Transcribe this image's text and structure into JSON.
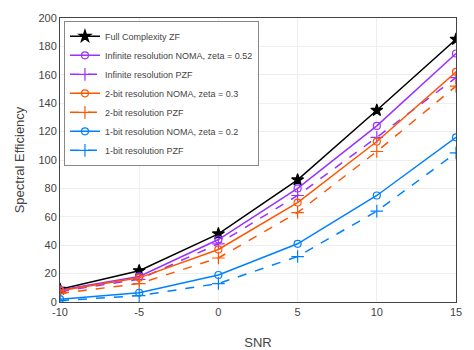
{
  "chart_data": {
    "type": "line",
    "xlabel": "SNR",
    "ylabel": "Spectral Efficiency",
    "x": [
      -10,
      -5,
      0,
      5,
      10,
      15
    ],
    "xlim": [
      -10,
      15
    ],
    "ylim": [
      0,
      200
    ],
    "xticks": [
      -10,
      -5,
      0,
      5,
      10,
      15
    ],
    "yticks": [
      0,
      20,
      40,
      60,
      80,
      100,
      120,
      140,
      160,
      180,
      200
    ],
    "grid": true,
    "legend": "upper left",
    "series": [
      {
        "name": "Full Complexity ZF",
        "color": "#000000",
        "line_style": "solid",
        "marker": "star",
        "values": [
          9.0,
          22.0,
          48.0,
          86.0,
          135.0,
          185.0
        ]
      },
      {
        "name": "Infinite resolution NOMA, zeta = 0.52",
        "color": "#9B30FF",
        "line_style": "solid",
        "marker": "circle-open",
        "values": [
          8.5,
          18.0,
          44.0,
          80.0,
          124.0,
          175.0
        ]
      },
      {
        "name": "Infinite resolution PZF",
        "color": "#9B30FF",
        "line_style": "dashed",
        "marker": "cross",
        "values": [
          7.5,
          16.0,
          41.0,
          75.0,
          116.0,
          158.0
        ]
      },
      {
        "name": "2-bit resolution NOMA, zeta = 0.3",
        "color": "#FF5500",
        "line_style": "solid",
        "marker": "circle-open",
        "values": [
          8.0,
          17.0,
          37.0,
          70.0,
          113.0,
          162.0
        ]
      },
      {
        "name": "2-bit resolution PZF",
        "color": "#FF5500",
        "line_style": "dashed",
        "marker": "cross",
        "values": [
          6.0,
          13.0,
          31.0,
          63.0,
          106.0,
          152.0
        ]
      },
      {
        "name": "1-bit resolution NOMA, zeta = 0.2",
        "color": "#0080FF",
        "line_style": "solid",
        "marker": "circle-open",
        "values": [
          2.0,
          6.5,
          19.0,
          41.0,
          75.0,
          116.0
        ]
      },
      {
        "name": "1-bit resolution PZF",
        "color": "#0080FF",
        "line_style": "dashed",
        "marker": "cross",
        "values": [
          1.0,
          4.5,
          13.0,
          32.0,
          64.0,
          105.0
        ]
      }
    ]
  }
}
